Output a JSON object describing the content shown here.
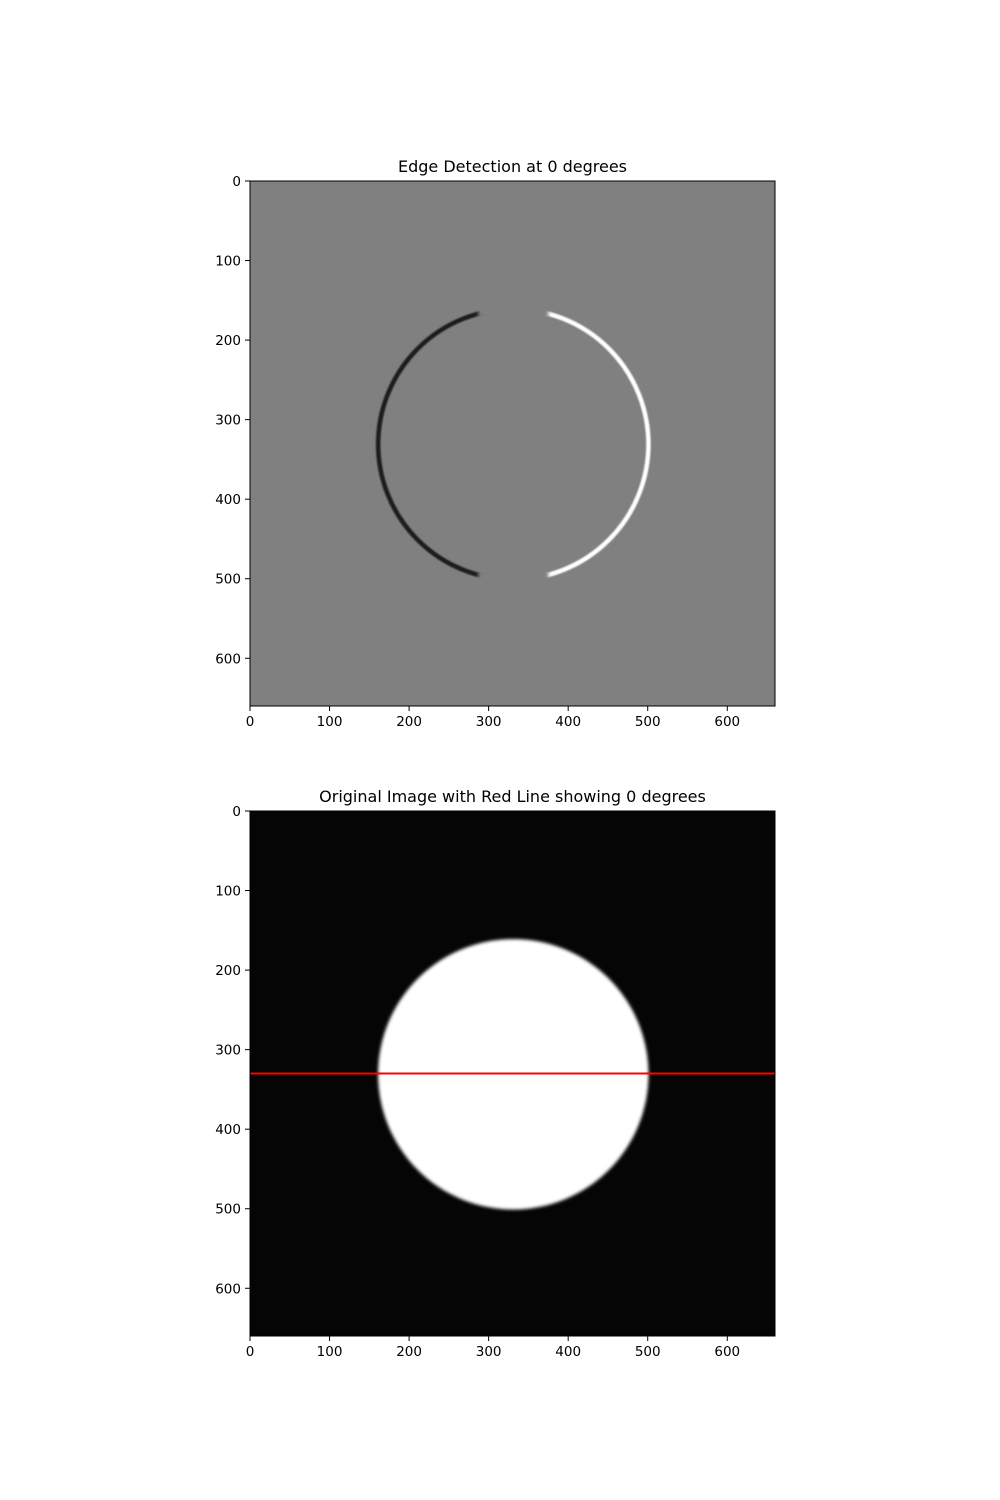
{
  "chart_data": [
    {
      "type": "heatmap",
      "title": "Edge Detection at 0 degrees",
      "xlabel": "",
      "ylabel": "",
      "xlim": [
        0,
        660
      ],
      "ylim": [
        660,
        0
      ],
      "x_ticks": [
        0,
        100,
        200,
        300,
        400,
        500,
        600
      ],
      "y_ticks": [
        0,
        100,
        200,
        300,
        400,
        500,
        600
      ],
      "image": {
        "colormap": "gray",
        "background_color": "#808080",
        "circle": {
          "cx": 331,
          "cy": 331,
          "r": 170
        },
        "edge_left_color": "#1a1a1a",
        "edge_right_color": "#ffffff"
      },
      "grid": false
    },
    {
      "type": "heatmap",
      "title": "Original Image with Red Line showing 0 degrees",
      "xlabel": "",
      "ylabel": "",
      "xlim": [
        0,
        660
      ],
      "ylim": [
        660,
        0
      ],
      "x_ticks": [
        0,
        100,
        200,
        300,
        400,
        500,
        600
      ],
      "y_ticks": [
        0,
        100,
        200,
        300,
        400,
        500,
        600
      ],
      "image": {
        "colormap": "gray",
        "background_color": "#050505",
        "circle": {
          "cx": 331,
          "cy": 331,
          "r": 170,
          "fill": "#ffffff"
        }
      },
      "line": {
        "color": "#ff0000",
        "angle_degrees": 0,
        "y": 330,
        "x": [
          0,
          660
        ]
      },
      "grid": false
    }
  ]
}
